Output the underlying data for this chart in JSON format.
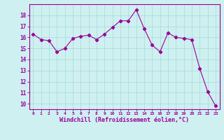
{
  "x": [
    0,
    1,
    2,
    3,
    4,
    5,
    6,
    7,
    8,
    9,
    10,
    11,
    12,
    13,
    14,
    15,
    16,
    17,
    18,
    19,
    20,
    21,
    22,
    23
  ],
  "y": [
    16.3,
    15.8,
    15.7,
    14.7,
    15.0,
    15.9,
    16.1,
    16.2,
    15.8,
    16.3,
    16.9,
    17.5,
    17.5,
    18.5,
    16.8,
    15.3,
    14.7,
    16.4,
    16.0,
    15.9,
    15.8,
    13.2,
    11.1,
    9.8
  ],
  "line_color": "#990099",
  "marker": "D",
  "marker_size": 2.2,
  "bg_color": "#cff0f0",
  "grid_color": "#aadddd",
  "xlabel": "Windchill (Refroidissement éolien,°C)",
  "xlabel_color": "#990099",
  "tick_color": "#990099",
  "ylim": [
    9.5,
    19.0
  ],
  "xlim": [
    -0.5,
    23.5
  ],
  "yticks": [
    10,
    11,
    12,
    13,
    14,
    15,
    16,
    17,
    18
  ],
  "xticks": [
    0,
    1,
    2,
    3,
    4,
    5,
    6,
    7,
    8,
    9,
    10,
    11,
    12,
    13,
    14,
    15,
    16,
    17,
    18,
    19,
    20,
    21,
    22,
    23
  ],
  "xtick_labels": [
    "0",
    "1",
    "2",
    "3",
    "4",
    "5",
    "6",
    "7",
    "8",
    "9",
    "10",
    "11",
    "12",
    "13",
    "14",
    "15",
    "16",
    "17",
    "18",
    "19",
    "20",
    "21",
    "22",
    "23"
  ],
  "spine_color": "#990099",
  "linewidth": 0.8
}
